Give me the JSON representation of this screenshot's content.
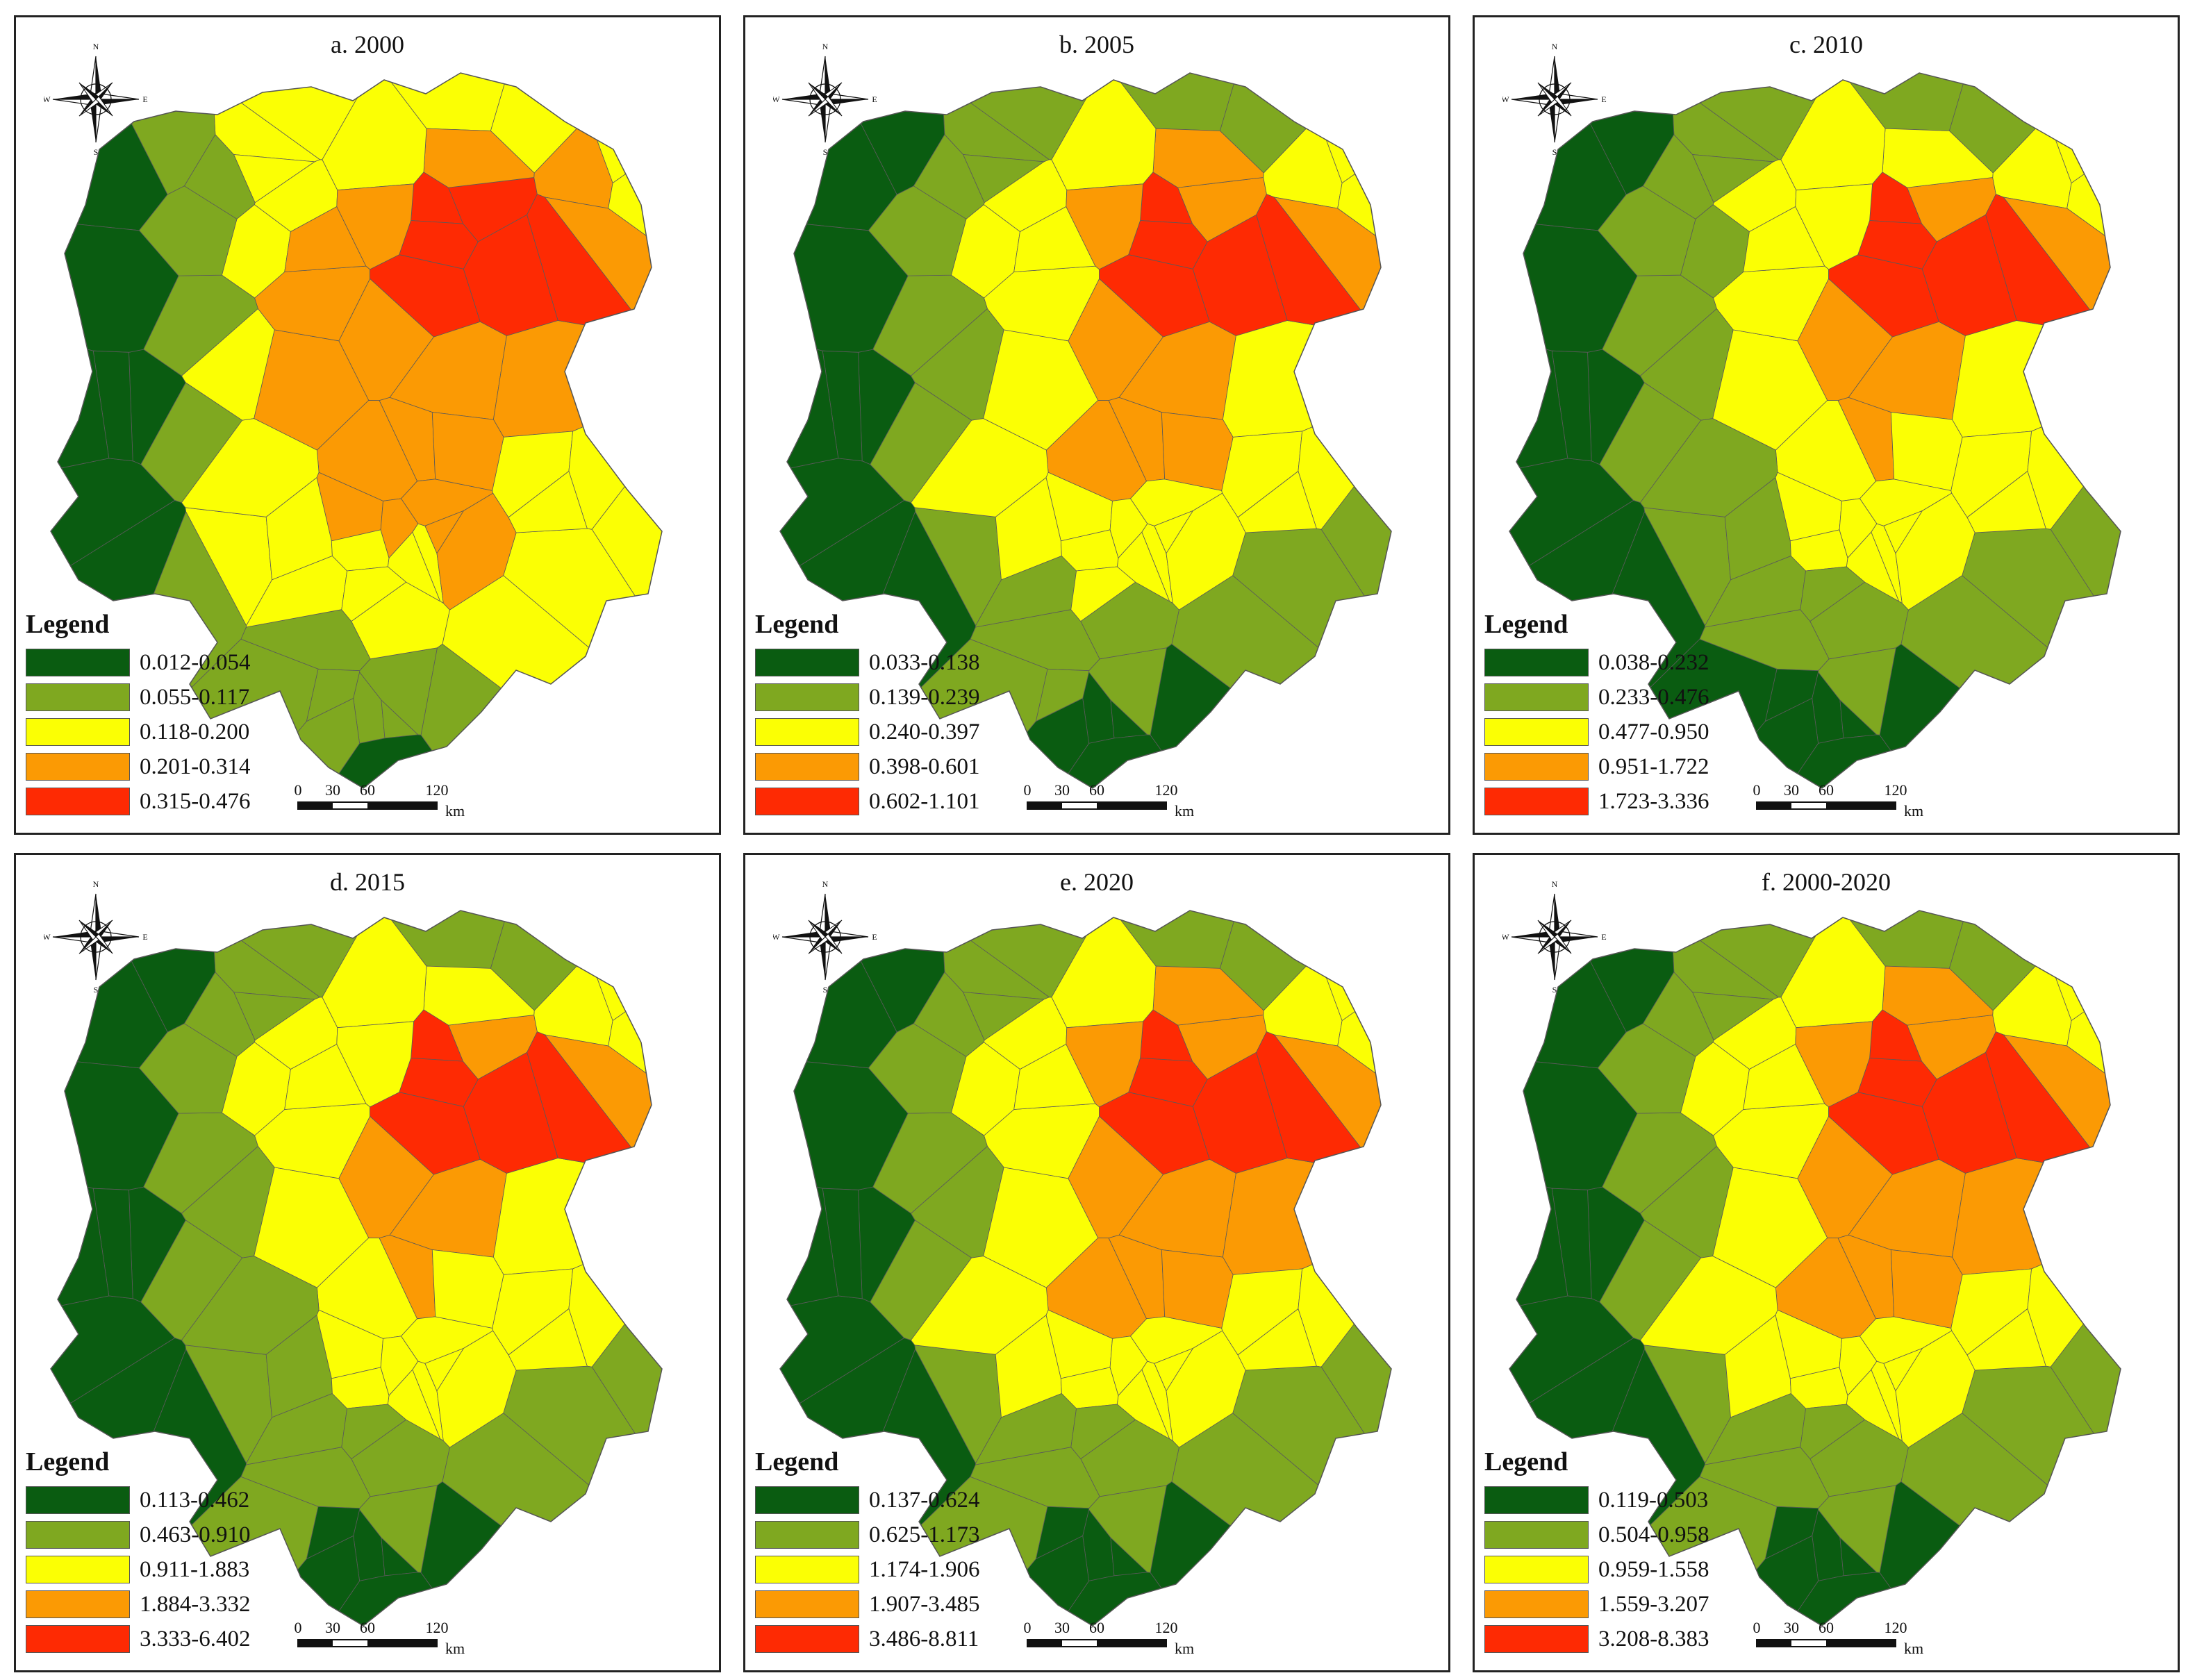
{
  "colors": {
    "class1": "#0a5c11",
    "class2": "#7fa820",
    "class3": "#fbff04",
    "class4": "#fb9a04",
    "class5": "#fe2a03",
    "border": "#5a5a5a",
    "frame": "#222222"
  },
  "compass_labels": {
    "n": "N",
    "s": "S",
    "e": "E",
    "w": "W"
  },
  "legend_title": "Legend",
  "scale_bar": {
    "ticks": [
      "0",
      "30",
      "60",
      "120"
    ],
    "unit": "km"
  },
  "panels": [
    {
      "title": "a. 2000",
      "legend": [
        "0.012-0.054",
        "0.055-0.117",
        "0.118-0.200",
        "0.201-0.314",
        "0.315-0.476"
      ],
      "class_counts": [
        8,
        14,
        26,
        18,
        6
      ]
    },
    {
      "title": "b. 2005",
      "legend": [
        "0.033-0.138",
        "0.139-0.239",
        "0.240-0.397",
        "0.398-0.601",
        "0.602-1.101"
      ],
      "class_counts": [
        14,
        20,
        24,
        9,
        5
      ]
    },
    {
      "title": "c. 2010",
      "legend": [
        "0.038-0.232",
        "0.233-0.476",
        "0.477-0.950",
        "0.951-1.722",
        "1.723-3.336"
      ],
      "class_counts": [
        16,
        22,
        24,
        5,
        5
      ]
    },
    {
      "title": "d. 2015",
      "legend": [
        "0.113-0.462",
        "0.463-0.910",
        "0.911-1.883",
        "1.884-3.332",
        "3.333-6.402"
      ],
      "class_counts": [
        15,
        22,
        25,
        5,
        5
      ]
    },
    {
      "title": "e. 2020",
      "legend": [
        "0.137-0.624",
        "0.625-1.173",
        "1.174-1.906",
        "1.907-3.485",
        "3.486-8.811"
      ],
      "class_counts": [
        15,
        20,
        22,
        10,
        5
      ]
    },
    {
      "title": "f. 2000-2020",
      "legend": [
        "0.119-0.503",
        "0.504-0.958",
        "0.959-1.558",
        "1.559-3.207",
        "3.208-8.383"
      ],
      "class_counts": [
        15,
        20,
        22,
        10,
        5
      ]
    }
  ]
}
